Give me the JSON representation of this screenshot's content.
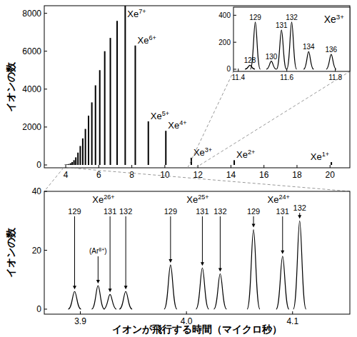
{
  "chart_data": [
    {
      "type": "bar",
      "y_label": "イオンの数",
      "color": "#000000",
      "x": [
        20.08,
        14.2,
        11.6,
        10.06,
        9.0,
        8.21,
        7.6,
        7.11,
        6.7,
        6.36,
        6.06,
        5.8,
        5.58,
        5.38,
        5.19,
        5.03,
        4.88,
        4.74,
        4.61,
        4.5,
        4.39,
        4.29,
        4.19,
        4.11,
        4.03,
        3.96
      ],
      "values": [
        150,
        250,
        380,
        1800,
        2300,
        6300,
        8400,
        7600,
        6700,
        6000,
        5000,
        4200,
        3300,
        2600,
        1900,
        1400,
        1000,
        650,
        400,
        250,
        150,
        90,
        50,
        30,
        25,
        15
      ],
      "peak_labels": [
        "Xe1+",
        "Xe2+",
        "Xe3+",
        "Xe4+",
        "Xe5+",
        "Xe6+",
        "Xe7+",
        null,
        null,
        null,
        null,
        null,
        null,
        null,
        null,
        null,
        null,
        null,
        null,
        null,
        null,
        null,
        null,
        null,
        null,
        null
      ],
      "xlim": [
        2.7,
        21.2
      ],
      "ylim": [
        -150,
        8400
      ],
      "xticks": [
        4,
        6,
        8,
        10,
        12,
        14,
        16,
        18,
        20
      ],
      "yticks": [
        0,
        2000,
        4000,
        6000,
        8000
      ]
    },
    {
      "type": "line",
      "title": "Xe3+",
      "color": "#000000",
      "x": [
        11.448,
        11.47,
        11.536,
        11.578,
        11.62,
        11.69,
        11.783
      ],
      "values": [
        30,
        350,
        60,
        290,
        350,
        130,
        110
      ],
      "peak_labels": [
        128,
        129,
        130,
        131,
        132,
        134,
        136
      ],
      "xlim": [
        11.38,
        11.86
      ],
      "ylim": [
        -16,
        460
      ],
      "xticks": [
        11.4,
        11.6,
        11.8
      ],
      "yticks": [
        0,
        200,
        400
      ]
    },
    {
      "type": "line",
      "y_label": "イオンの数",
      "x_label": "イオンが飛行する時間（マイクロ秒）",
      "color": "#000000",
      "series": [
        {
          "name": "Xe26+",
          "x": [
            3.8946,
            3.928,
            3.9428
          ],
          "values": [
            6,
            5,
            6
          ],
          "peak_labels": [
            129,
            131,
            132
          ]
        },
        {
          "name": "Xe25+",
          "x": [
            3.985,
            4.015,
            4.0318
          ],
          "values": [
            15,
            14,
            12
          ],
          "peak_labels": [
            129,
            131,
            132
          ]
        },
        {
          "name": "Xe24+",
          "x": [
            4.0632,
            4.0906,
            4.1067
          ],
          "values": [
            27,
            18,
            30
          ],
          "peak_labels": [
            129,
            131,
            132
          ]
        }
      ],
      "annotations": [
        {
          "text": "(Ar8+)",
          "x": 3.9167,
          "value": 8
        }
      ],
      "xlim": [
        3.866,
        4.154
      ],
      "ylim": [
        -1.7,
        40
      ],
      "xticks": [
        3.9,
        {
          "value": 4,
          "label": "4.0"
        },
        4.1
      ],
      "yticks": [
        0,
        20,
        40
      ]
    }
  ]
}
